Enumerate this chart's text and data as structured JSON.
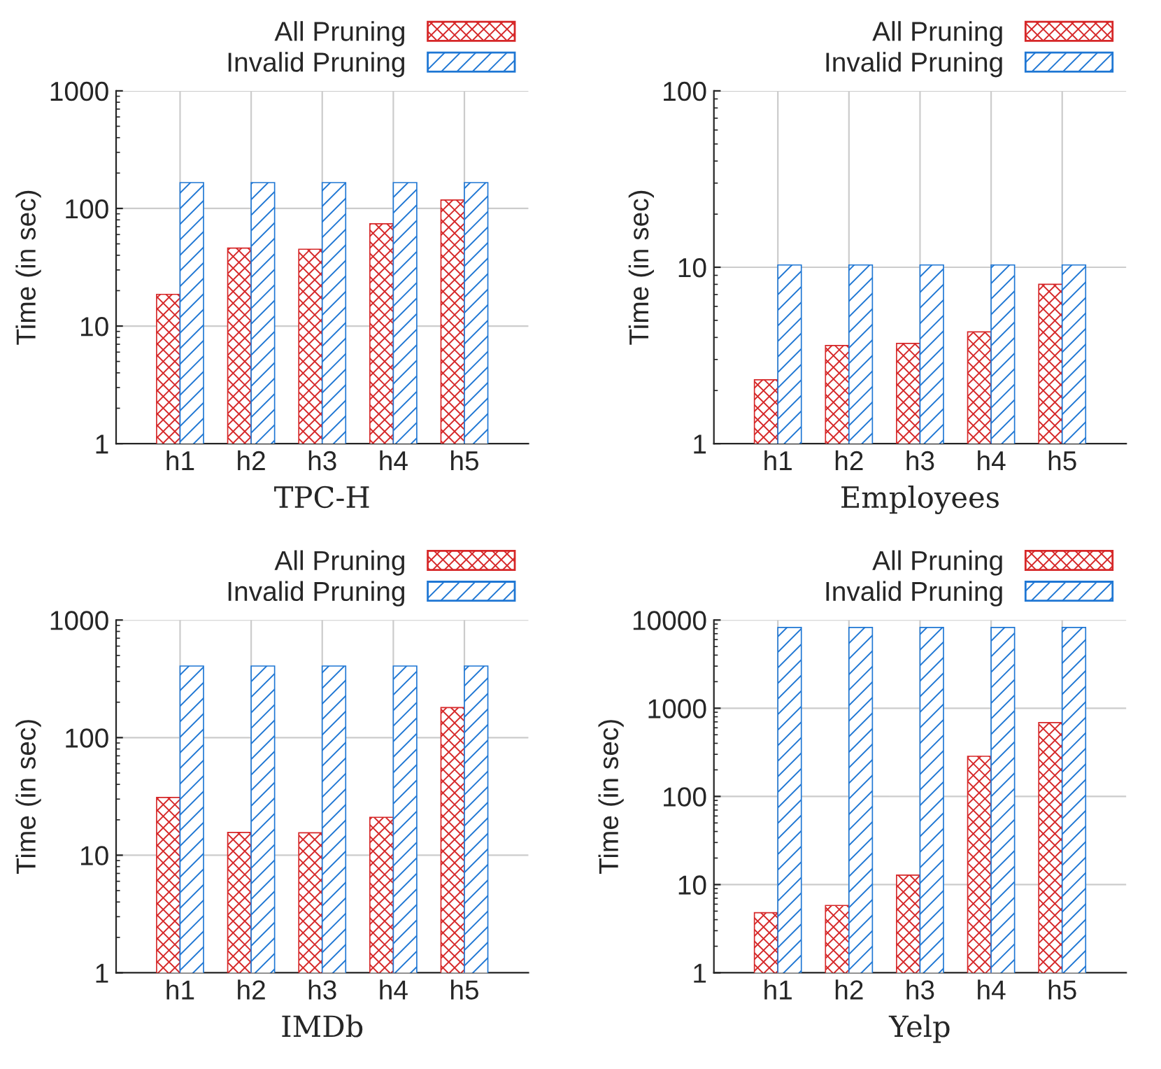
{
  "chart_data": [
    {
      "type": "bar",
      "xlabel": "TPC-H",
      "ylabel": "Time (in sec)",
      "categories": [
        "h1",
        "h2",
        "h3",
        "h4",
        "h5"
      ],
      "log": true,
      "ylim": [
        1,
        1000
      ],
      "yticks": [
        1,
        10,
        100,
        1000
      ],
      "grid": true,
      "legend": "top right",
      "series": [
        {
          "name": "All Pruning",
          "color": "#d62728",
          "values": [
            18.6,
            46,
            45,
            74,
            118
          ]
        },
        {
          "name": "Invalid Pruning",
          "color": "#1f77d4",
          "values": [
            166,
            166,
            166,
            166,
            166
          ]
        }
      ]
    },
    {
      "type": "bar",
      "xlabel": "Employees",
      "ylabel": "Time (in sec)",
      "categories": [
        "h1",
        "h2",
        "h3",
        "h4",
        "h5"
      ],
      "log": true,
      "ylim": [
        1,
        100
      ],
      "yticks": [
        1,
        10,
        100
      ],
      "grid": true,
      "legend": "top right",
      "series": [
        {
          "name": "All Pruning",
          "color": "#d62728",
          "values": [
            2.3,
            3.6,
            3.7,
            4.3,
            8.0
          ]
        },
        {
          "name": "Invalid Pruning",
          "color": "#1f77d4",
          "values": [
            10.3,
            10.3,
            10.3,
            10.3,
            10.3
          ]
        }
      ]
    },
    {
      "type": "bar",
      "xlabel": "IMDb",
      "ylabel": "Time (in sec)",
      "categories": [
        "h1",
        "h2",
        "h3",
        "h4",
        "h5"
      ],
      "log": true,
      "ylim": [
        1,
        1000
      ],
      "yticks": [
        1,
        10,
        100,
        1000
      ],
      "grid": true,
      "legend": "top right",
      "series": [
        {
          "name": "All Pruning",
          "color": "#d62728",
          "values": [
            31,
            15.6,
            15.5,
            21,
            180
          ]
        },
        {
          "name": "Invalid Pruning",
          "color": "#1f77d4",
          "values": [
            406,
            406,
            406,
            406,
            406
          ]
        }
      ]
    },
    {
      "type": "bar",
      "xlabel": "Yelp",
      "ylabel": "Time (in sec)",
      "categories": [
        "h1",
        "h2",
        "h3",
        "h4",
        "h5"
      ],
      "log": true,
      "ylim": [
        1,
        10000
      ],
      "yticks": [
        1,
        10,
        100,
        1000,
        10000
      ],
      "grid": true,
      "legend": "top right",
      "series": [
        {
          "name": "All Pruning",
          "color": "#d62728",
          "values": [
            4.8,
            5.8,
            12.8,
            285,
            687
          ]
        },
        {
          "name": "Invalid Pruning",
          "color": "#1f77d4",
          "values": [
            8240,
            8240,
            8240,
            8240,
            8240
          ]
        }
      ]
    }
  ]
}
